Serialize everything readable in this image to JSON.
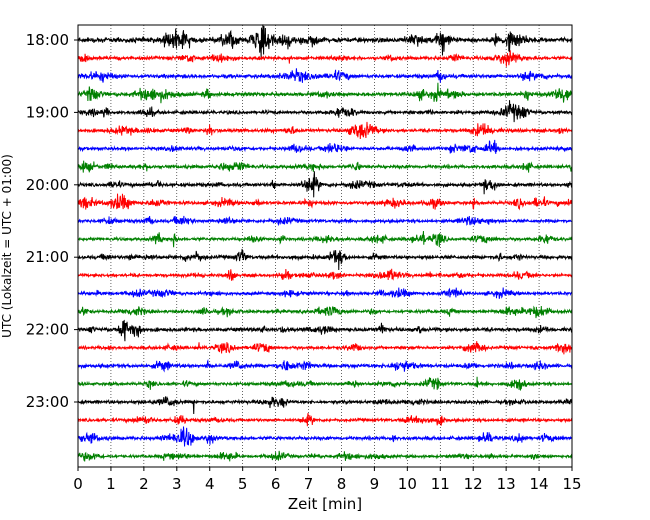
{
  "chart_data": {
    "type": "line",
    "title": "",
    "xlabel": "Zeit  [min]",
    "ylabel": "UTC (Lokalzeit = UTC + 01:00)",
    "xlim": [
      0,
      15
    ],
    "x_ticks": [
      0,
      1,
      2,
      3,
      4,
      5,
      6,
      7,
      8,
      9,
      10,
      11,
      12,
      13,
      14,
      15
    ],
    "y_tick_labels": [
      "18:00",
      "19:00",
      "20:00",
      "21:00",
      "22:00",
      "23:00"
    ],
    "y_tick_minutes": [
      0,
      60,
      120,
      180,
      240,
      300
    ],
    "trace_interval_minutes": 15,
    "start_time": "18:00",
    "end_time": "23:45",
    "grid": "vertical dotted lines at each minute",
    "legend": "none",
    "trace_colors": [
      "#000000",
      "#ff0000",
      "#0000ff",
      "#008000"
    ],
    "traces": [
      {
        "start": "18:00",
        "color": "#000000",
        "amplitude": 3.0
      },
      {
        "start": "18:15",
        "color": "#ff0000",
        "amplitude": 2.0
      },
      {
        "start": "18:30",
        "color": "#0000ff",
        "amplitude": 2.2
      },
      {
        "start": "18:45",
        "color": "#008000",
        "amplitude": 2.2
      },
      {
        "start": "19:00",
        "color": "#000000",
        "amplitude": 2.0
      },
      {
        "start": "19:15",
        "color": "#ff0000",
        "amplitude": 2.0
      },
      {
        "start": "19:30",
        "color": "#0000ff",
        "amplitude": 1.8
      },
      {
        "start": "19:45",
        "color": "#008000",
        "amplitude": 2.0
      },
      {
        "start": "20:00",
        "color": "#000000",
        "amplitude": 2.0
      },
      {
        "start": "20:15",
        "color": "#ff0000",
        "amplitude": 2.0
      },
      {
        "start": "20:30",
        "color": "#0000ff",
        "amplitude": 1.8
      },
      {
        "start": "20:45",
        "color": "#008000",
        "amplitude": 1.8
      },
      {
        "start": "21:00",
        "color": "#000000",
        "amplitude": 2.0
      },
      {
        "start": "21:15",
        "color": "#ff0000",
        "amplitude": 1.8
      },
      {
        "start": "21:30",
        "color": "#0000ff",
        "amplitude": 1.8
      },
      {
        "start": "21:45",
        "color": "#008000",
        "amplitude": 1.8
      },
      {
        "start": "22:00",
        "color": "#000000",
        "amplitude": 2.2
      },
      {
        "start": "22:15",
        "color": "#ff0000",
        "amplitude": 1.8
      },
      {
        "start": "22:30",
        "color": "#0000ff",
        "amplitude": 2.2
      },
      {
        "start": "22:45",
        "color": "#008000",
        "amplitude": 1.8
      },
      {
        "start": "23:00",
        "color": "#000000",
        "amplitude": 2.0
      },
      {
        "start": "23:15",
        "color": "#ff0000",
        "amplitude": 1.8
      },
      {
        "start": "23:30",
        "color": "#0000ff",
        "amplitude": 2.0
      },
      {
        "start": "23:45",
        "color": "#008000",
        "amplitude": 1.6
      }
    ]
  }
}
